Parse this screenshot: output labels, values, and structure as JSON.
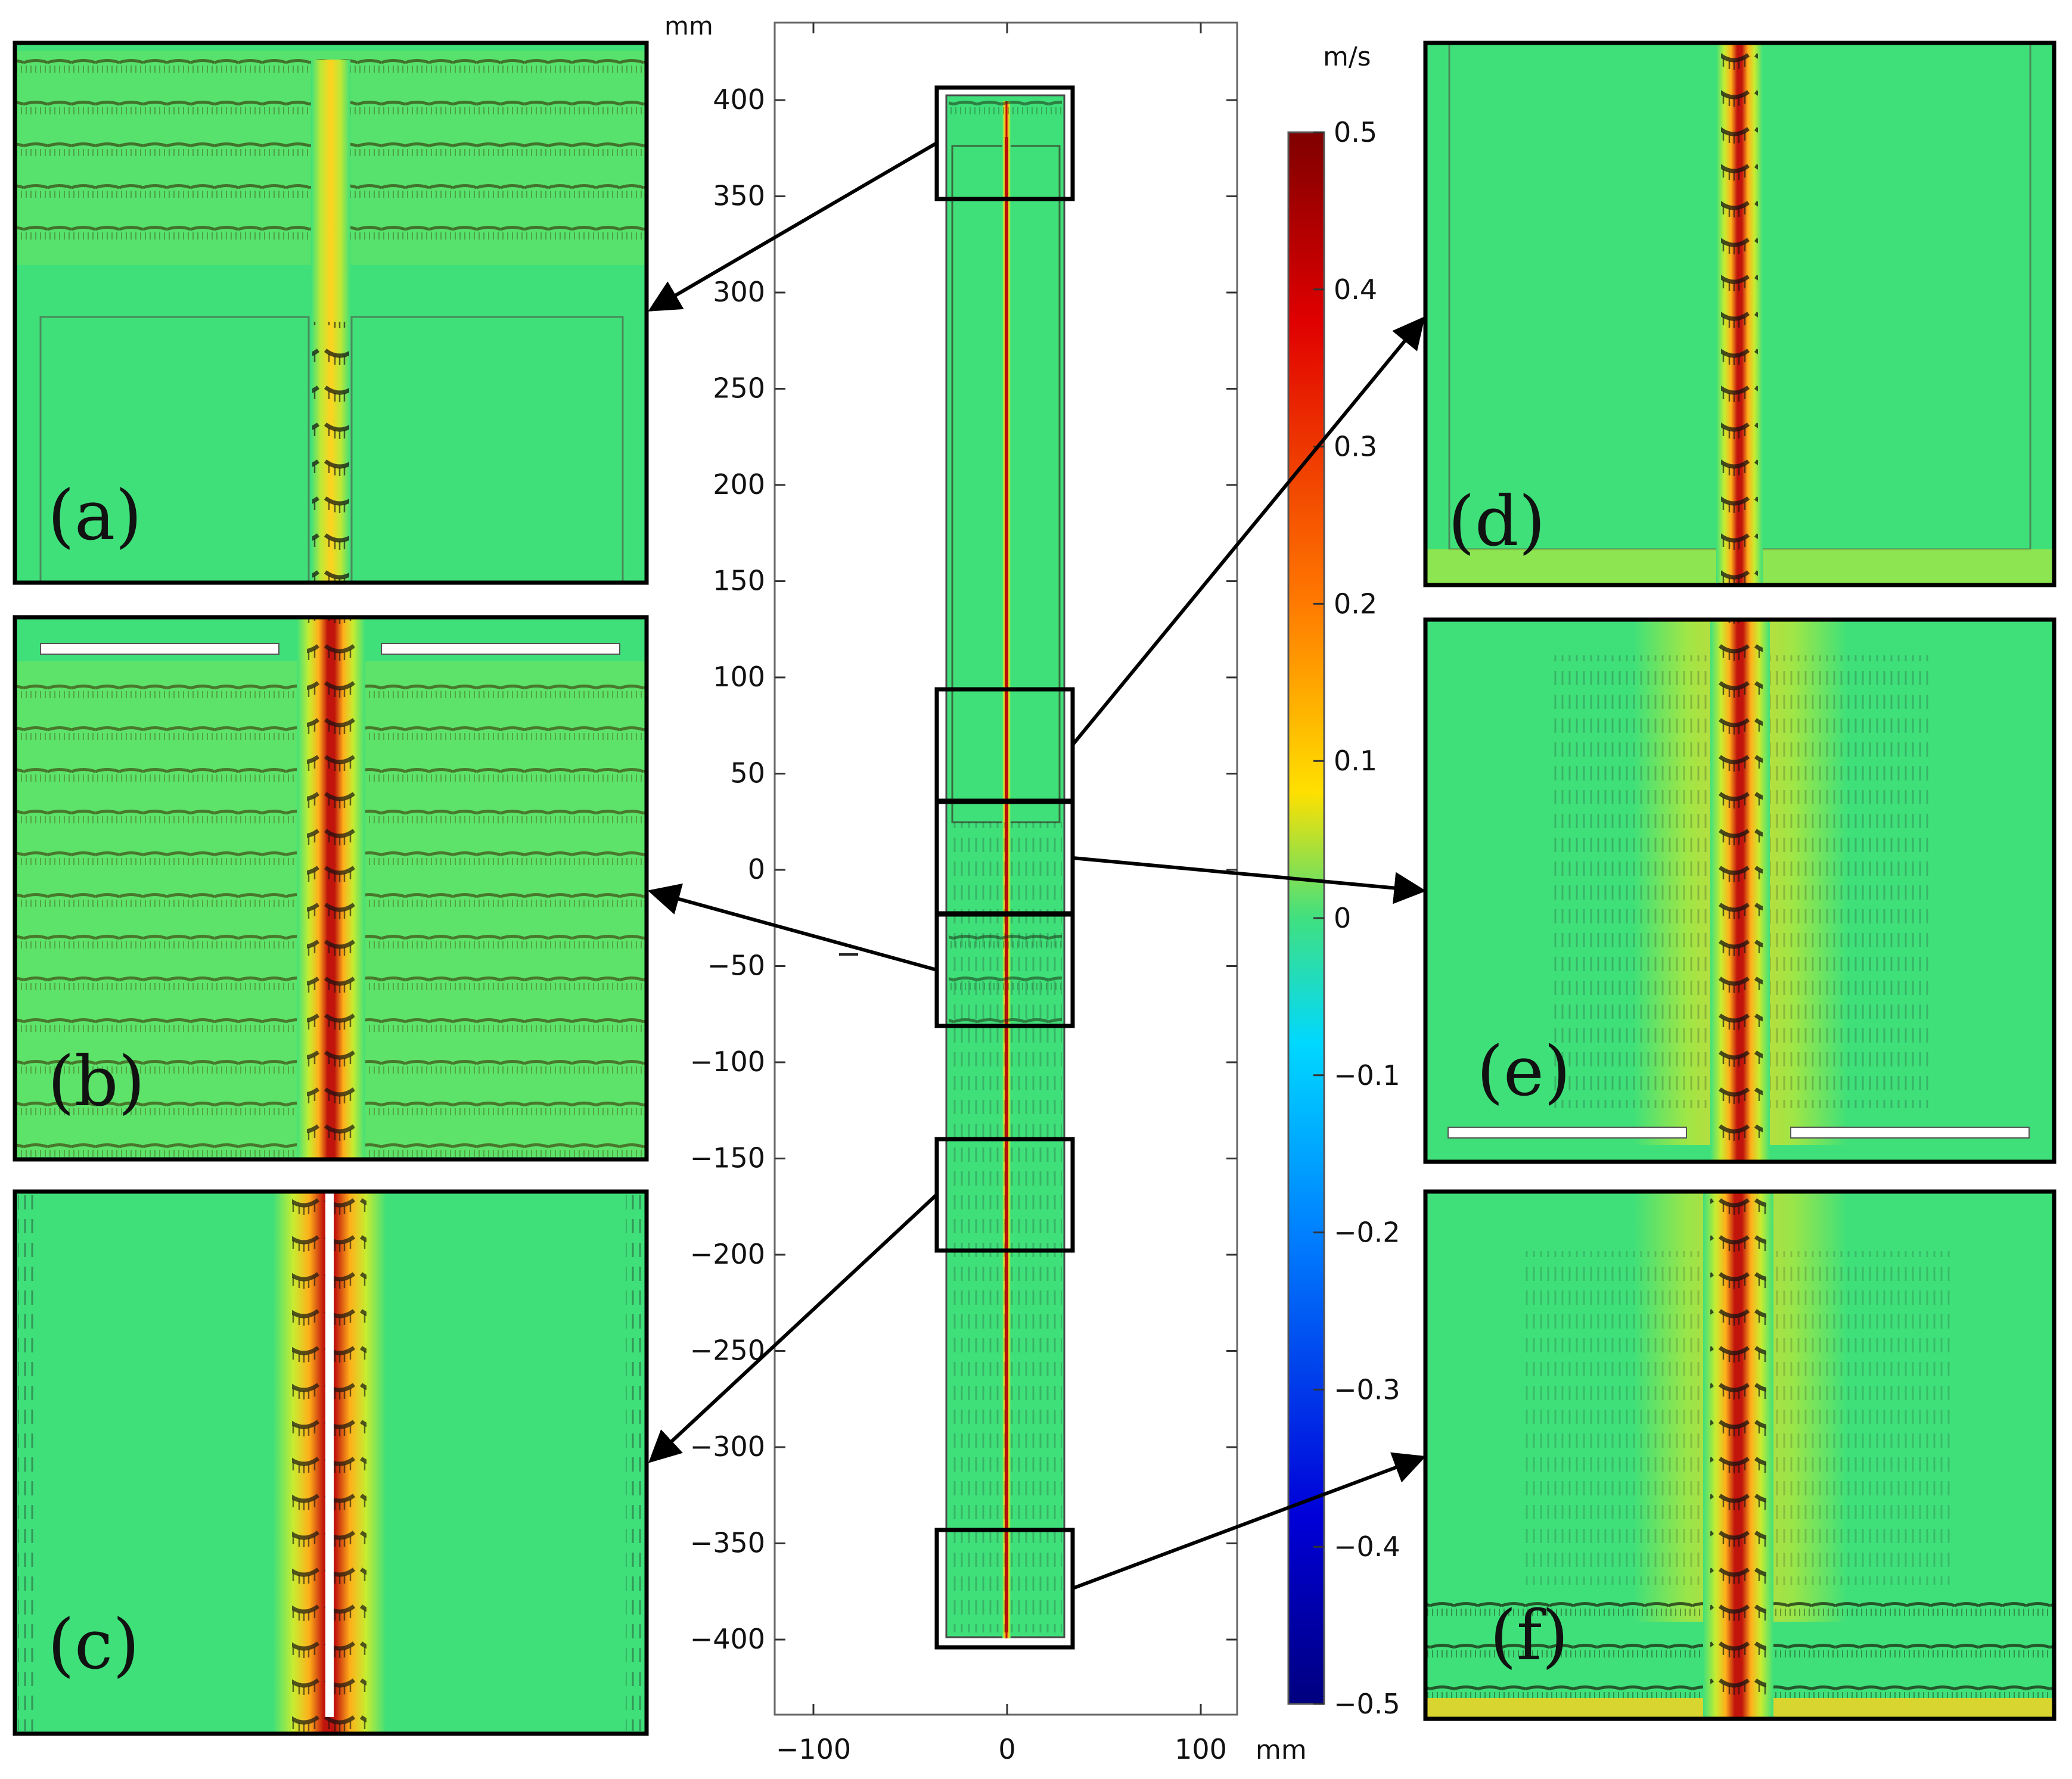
{
  "center_plot": {
    "y_unit": "mm",
    "x_unit": "mm",
    "x_ticks": [
      "−100",
      "0",
      "100"
    ],
    "y_ticks": [
      "400",
      "350",
      "300",
      "250",
      "200",
      "150",
      "100",
      "50",
      "0",
      "−50",
      "−100",
      "−150",
      "−200",
      "−250",
      "−300",
      "−350",
      "−400"
    ],
    "x_range_mm": [
      -120,
      120
    ],
    "y_range_mm": [
      -440,
      440
    ]
  },
  "colorbar": {
    "unit": "m/s",
    "ticks": [
      "0.5",
      "0.4",
      "0.3",
      "0.2",
      "0.1",
      "0",
      "−0.1",
      "−0.2",
      "−0.3",
      "−0.4",
      "−0.5"
    ],
    "range": [
      -0.5,
      0.5
    ],
    "colormap": "jet"
  },
  "panels": [
    {
      "id": "a",
      "label": "(a)",
      "zoom_y_range_mm": [
        350,
        405
      ]
    },
    {
      "id": "b",
      "label": "(b)",
      "zoom_y_range_mm": [
        -80,
        -25
      ]
    },
    {
      "id": "c",
      "label": "(c)",
      "zoom_y_range_mm": [
        -198,
        -140
      ]
    },
    {
      "id": "d",
      "label": "(d)",
      "zoom_y_range_mm": [
        35,
        93
      ]
    },
    {
      "id": "e",
      "label": "(e)",
      "zoom_y_range_mm": [
        -23,
        35
      ]
    },
    {
      "id": "f",
      "label": "(f)",
      "zoom_y_range_mm": [
        -405,
        -342
      ]
    }
  ],
  "colors": {
    "background_field": "#3fe07a",
    "jet_core": "#b80f0a",
    "jet_edge": "#ffd21e",
    "frame": "#000000"
  }
}
